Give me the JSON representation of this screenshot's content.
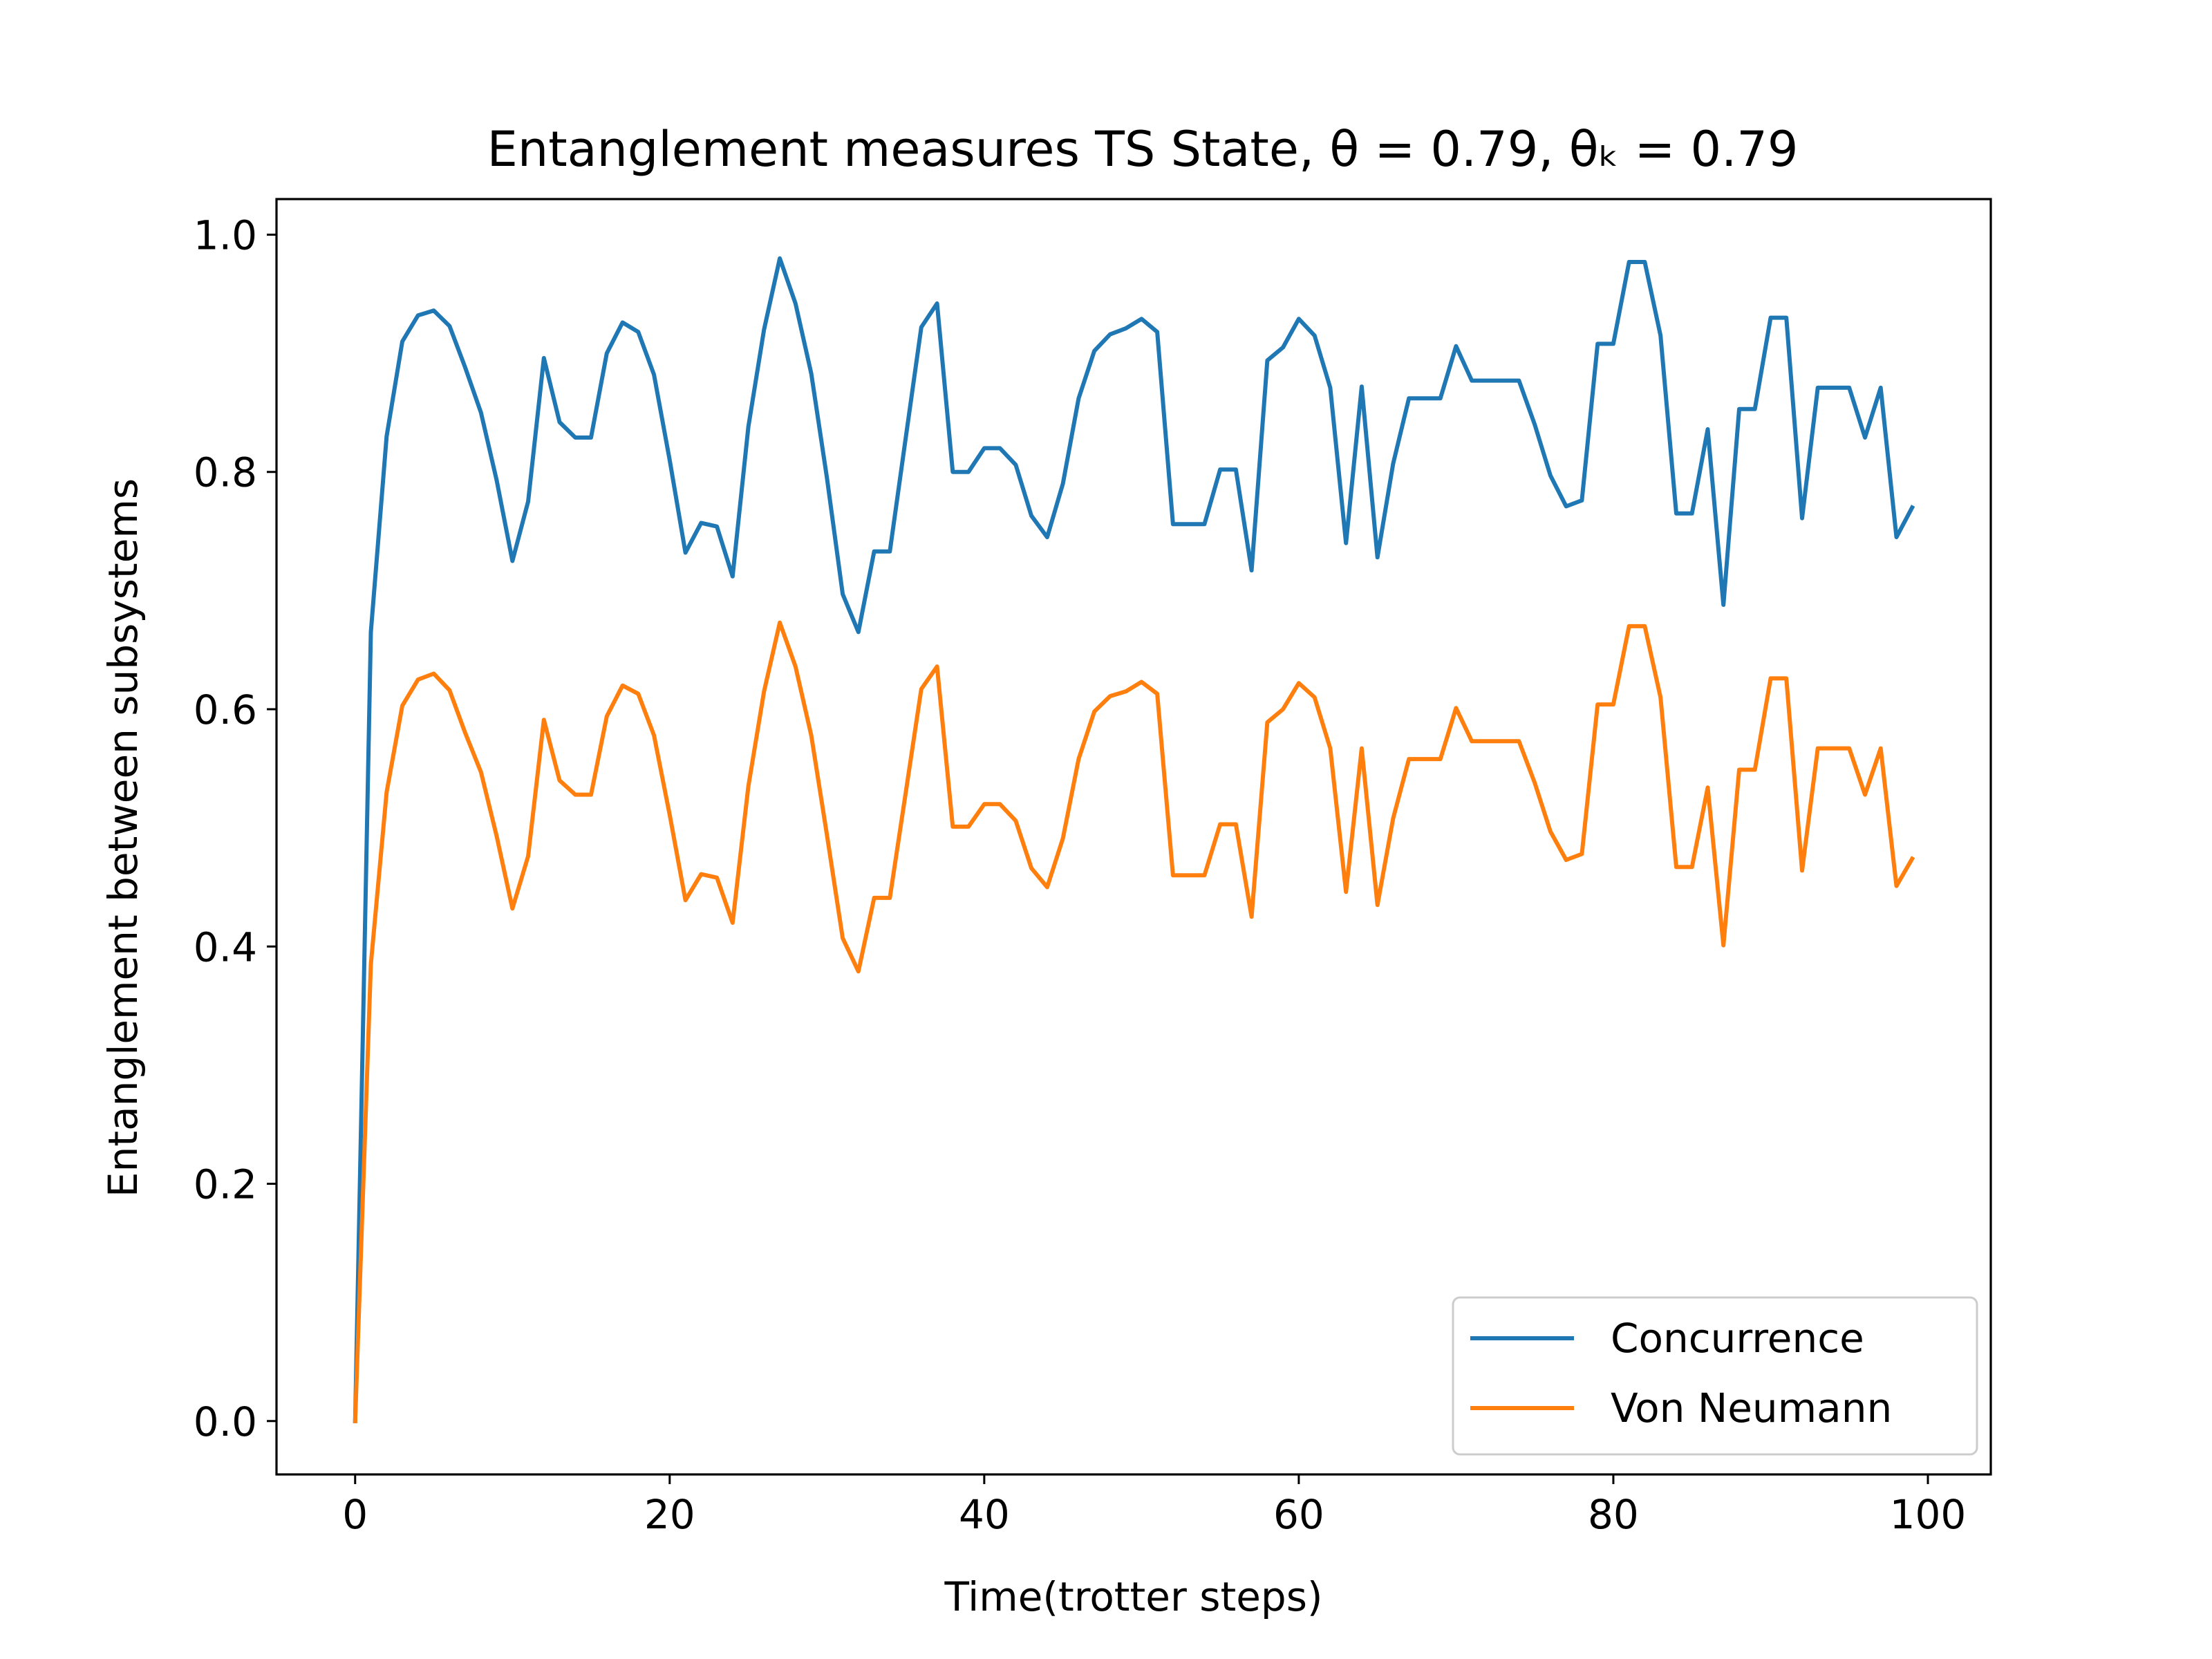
{
  "chart_data": {
    "type": "line",
    "title": "Entanglement measures TS State, θ = 0.79,  θₖ = 0.79",
    "xlabel": "Time(trotter steps)",
    "ylabel": "Entanglement between subsystems",
    "xlim": [
      -5,
      104
    ],
    "ylim": [
      -0.045,
      1.03
    ],
    "xticks": [
      0,
      20,
      40,
      60,
      80,
      100
    ],
    "xtick_labels": [
      "0",
      "20",
      "40",
      "60",
      "80",
      "100"
    ],
    "yticks": [
      0.0,
      0.2,
      0.4,
      0.6,
      0.8,
      1.0
    ],
    "ytick_labels": [
      "0.0",
      "0.2",
      "0.4",
      "0.6",
      "0.8",
      "1.0"
    ],
    "grid": false,
    "legend_position": "lower-right",
    "x": [
      0,
      1,
      2,
      3,
      4,
      5,
      6,
      7,
      8,
      9,
      10,
      11,
      12,
      13,
      14,
      15,
      16,
      17,
      18,
      19,
      20,
      21,
      22,
      23,
      24,
      25,
      26,
      27,
      28,
      29,
      30,
      31,
      32,
      33,
      34,
      35,
      36,
      37,
      38,
      39,
      40,
      41,
      42,
      43,
      44,
      45,
      46,
      47,
      48,
      49,
      50,
      51,
      52,
      53,
      54,
      55,
      56,
      57,
      58,
      59,
      60,
      61,
      62,
      63,
      64,
      65,
      66,
      67,
      68,
      69,
      70,
      71,
      72,
      73,
      74,
      75,
      76,
      77,
      78,
      79,
      80,
      81,
      82,
      83,
      84,
      85,
      86,
      87,
      88,
      89,
      90,
      91,
      92,
      93,
      94,
      95,
      96,
      97,
      98,
      99
    ],
    "series": [
      {
        "name": "Concurrence",
        "color": "#1f77b4",
        "values": [
          0.0,
          0.665,
          0.83,
          0.91,
          0.932,
          0.936,
          0.923,
          0.888,
          0.85,
          0.793,
          0.725,
          0.775,
          0.896,
          0.842,
          0.829,
          0.829,
          0.9,
          0.926,
          0.918,
          0.882,
          0.81,
          0.732,
          0.757,
          0.754,
          0.712,
          0.838,
          0.92,
          0.98,
          0.942,
          0.883,
          0.795,
          0.697,
          0.665,
          0.733,
          0.733,
          0.828,
          0.922,
          0.942,
          0.8,
          0.8,
          0.82,
          0.82,
          0.806,
          0.763,
          0.745,
          0.79,
          0.862,
          0.902,
          0.916,
          0.921,
          0.929,
          0.918,
          0.756,
          0.756,
          0.756,
          0.802,
          0.802,
          0.717,
          0.894,
          0.905,
          0.929,
          0.915,
          0.871,
          0.74,
          0.872,
          0.728,
          0.807,
          0.862,
          0.862,
          0.862,
          0.906,
          0.877,
          0.877,
          0.877,
          0.877,
          0.84,
          0.797,
          0.771,
          0.776,
          0.908,
          0.908,
          0.977,
          0.977,
          0.915,
          0.765,
          0.765,
          0.836,
          0.688,
          0.853,
          0.853,
          0.93,
          0.93,
          0.761,
          0.871,
          0.871,
          0.871,
          0.829,
          0.871,
          0.745,
          0.77
        ]
      },
      {
        "name": "Von Neumann",
        "color": "#ff7f0e",
        "values": [
          0.0,
          0.385,
          0.53,
          0.603,
          0.625,
          0.63,
          0.616,
          0.58,
          0.547,
          0.493,
          0.432,
          0.476,
          0.591,
          0.54,
          0.528,
          0.528,
          0.594,
          0.62,
          0.613,
          0.578,
          0.511,
          0.439,
          0.461,
          0.458,
          0.42,
          0.535,
          0.615,
          0.673,
          0.636,
          0.578,
          0.494,
          0.407,
          0.379,
          0.441,
          0.441,
          0.529,
          0.617,
          0.636,
          0.501,
          0.501,
          0.52,
          0.52,
          0.506,
          0.466,
          0.45,
          0.491,
          0.558,
          0.598,
          0.611,
          0.615,
          0.623,
          0.613,
          0.46,
          0.46,
          0.46,
          0.503,
          0.503,
          0.425,
          0.589,
          0.6,
          0.622,
          0.61,
          0.567,
          0.446,
          0.567,
          0.435,
          0.508,
          0.558,
          0.558,
          0.558,
          0.601,
          0.573,
          0.573,
          0.573,
          0.573,
          0.538,
          0.497,
          0.473,
          0.478,
          0.604,
          0.604,
          0.67,
          0.67,
          0.61,
          0.467,
          0.467,
          0.534,
          0.401,
          0.549,
          0.549,
          0.626,
          0.626,
          0.464,
          0.567,
          0.567,
          0.567,
          0.528,
          0.567,
          0.451,
          0.474
        ]
      }
    ]
  }
}
